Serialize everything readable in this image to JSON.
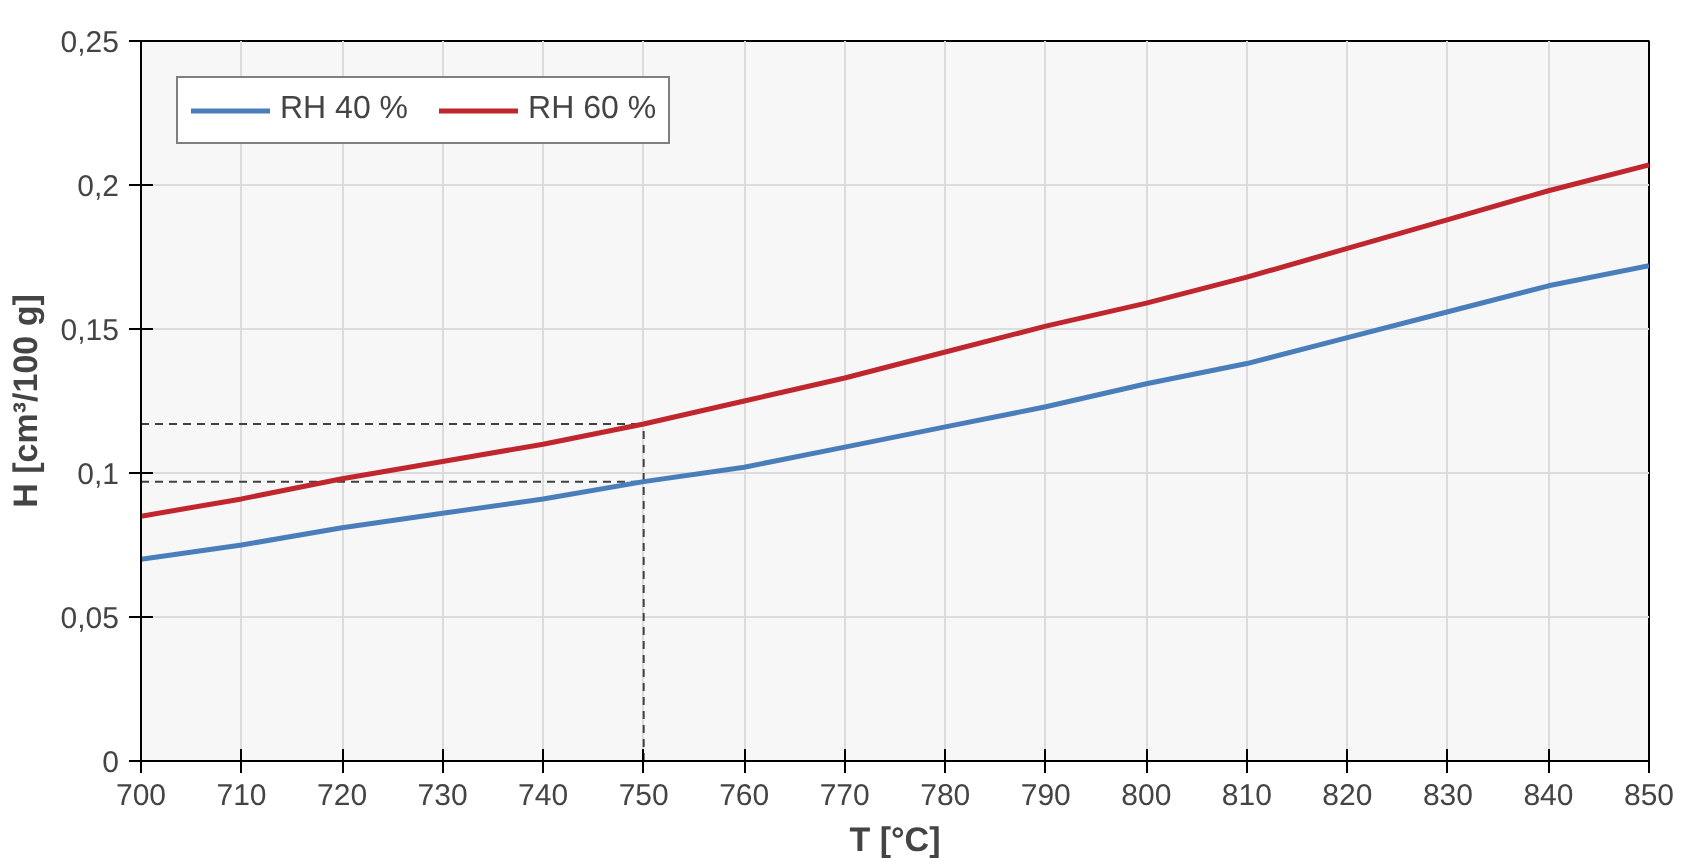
{
  "chart_data": {
    "type": "line",
    "xlabel": "T [°C]",
    "ylabel": "H [cm³/100 g]",
    "x": [
      700,
      710,
      720,
      730,
      740,
      750,
      760,
      770,
      780,
      790,
      800,
      810,
      820,
      830,
      840,
      850
    ],
    "series": [
      {
        "name": "RH 40 %",
        "color": "#4a7ebb",
        "values": [
          0.07,
          0.075,
          0.081,
          0.086,
          0.091,
          0.097,
          0.102,
          0.109,
          0.116,
          0.123,
          0.131,
          0.138,
          0.147,
          0.156,
          0.165,
          0.172
        ]
      },
      {
        "name": "RH 60 %",
        "color": "#c0262d",
        "values": [
          0.085,
          0.091,
          0.098,
          0.104,
          0.11,
          0.117,
          0.125,
          0.133,
          0.142,
          0.151,
          0.159,
          0.168,
          0.178,
          0.188,
          0.198,
          0.207
        ]
      }
    ],
    "xlim": [
      700,
      850
    ],
    "xticks": [
      700,
      710,
      720,
      730,
      740,
      750,
      760,
      770,
      780,
      790,
      800,
      810,
      820,
      830,
      840,
      850
    ],
    "ylim": [
      0,
      0.25
    ],
    "yticks": [
      0,
      {
        "value": 0.05,
        "label": "0,05"
      },
      {
        "value": 0.1,
        "label": "0,1"
      },
      {
        "value": 0.15,
        "label": "0,15"
      },
      {
        "value": 0.2,
        "label": "0,2"
      },
      {
        "value": 0.25,
        "label": "0,25"
      }
    ],
    "ref_lines": [
      {
        "axis": "x",
        "value": 750,
        "color": "#404040",
        "line_style": "dashed"
      },
      {
        "axis": "y",
        "value": 0.097,
        "color": "#404040",
        "line_style": "dashed"
      },
      {
        "axis": "y",
        "value": 0.117,
        "color": "#404040",
        "line_style": "dashed"
      }
    ],
    "grid": true,
    "legend": "top left",
    "line_style": "solid",
    "marker": "none"
  }
}
